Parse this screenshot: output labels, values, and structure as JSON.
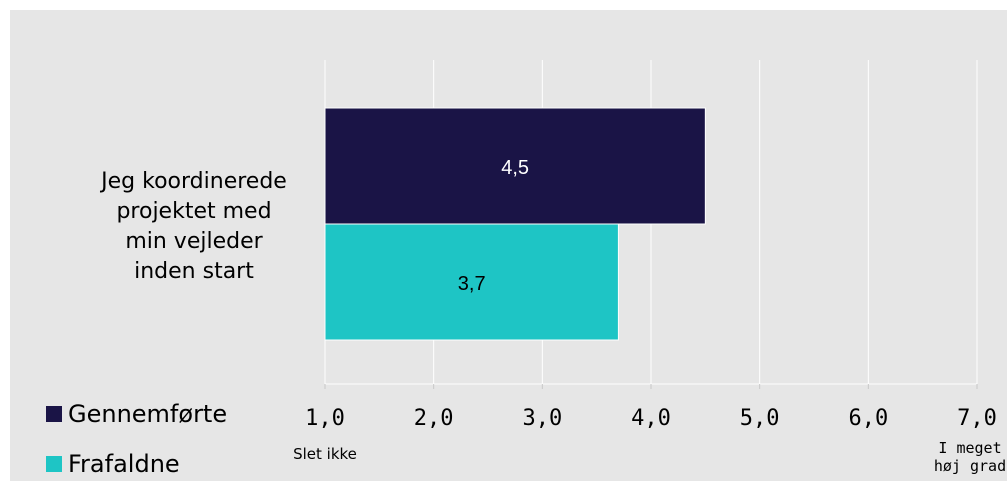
{
  "chart_data": {
    "type": "bar",
    "orientation": "horizontal",
    "categories": [
      "Jeg koordinerede projektet med min vejleder inden start"
    ],
    "category_lines": [
      "Jeg koordinerede",
      "projektet med",
      "min vejleder",
      "inden start"
    ],
    "series": [
      {
        "name": "Gennemførte",
        "values": [
          4.5
        ],
        "labels": [
          "4,5"
        ],
        "color": "#1a1446",
        "label_color": "#ffffff"
      },
      {
        "name": "Frafaldne",
        "values": [
          3.7
        ],
        "labels": [
          "3,7"
        ],
        "color": "#1ec5c5",
        "label_color": "#000000"
      }
    ],
    "xlim": [
      1,
      7
    ],
    "xticks": [
      1,
      2,
      3,
      4,
      5,
      6,
      7
    ],
    "xtick_labels": [
      "1,0",
      "2,0",
      "3,0",
      "4,0",
      "5,0",
      "6,0",
      "7,0"
    ],
    "x_min_label": "Slet ikke",
    "x_max_label_lines": [
      "I meget",
      "høj grad"
    ],
    "grid": true,
    "legend_position": "bottom-left",
    "background": "#e6e6e6",
    "gridline_color": "#ffffff",
    "title": ""
  }
}
